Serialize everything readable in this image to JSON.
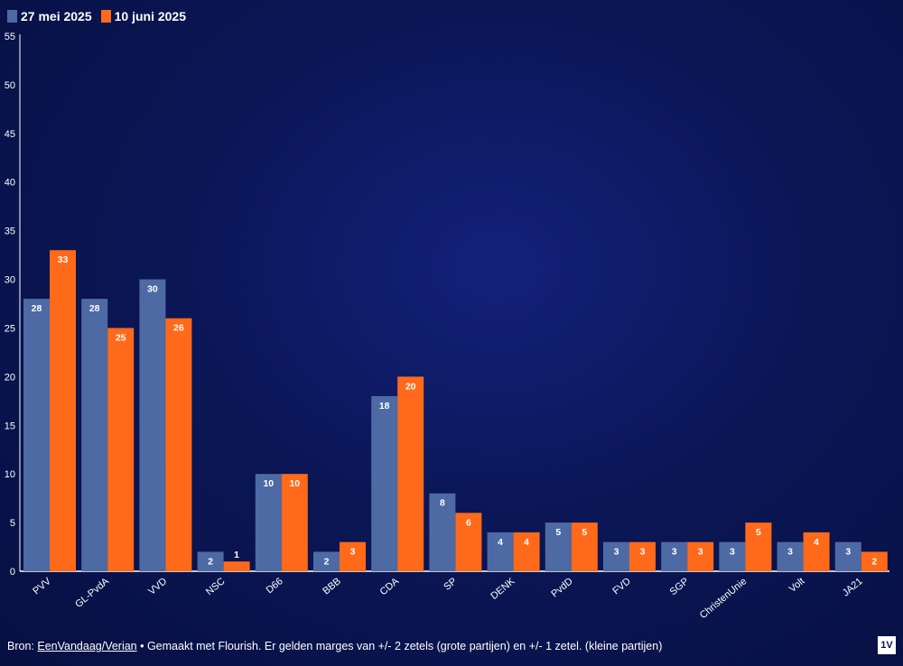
{
  "legend": {
    "items": [
      {
        "label": "27 mei 2025",
        "color": "#4e6aa4"
      },
      {
        "label": "10 juni 2025",
        "color": "#ff6a1a"
      }
    ]
  },
  "chart_data": {
    "type": "bar",
    "categories": [
      "PVV",
      "GL-PvdA",
      "VVD",
      "NSC",
      "D66",
      "BBB",
      "CDA",
      "SP",
      "DENK",
      "PvdD",
      "FVD",
      "SGP",
      "ChristenUnie",
      "Volt",
      "JA21"
    ],
    "series": [
      {
        "name": "27 mei 2025",
        "color": "#4e6aa4",
        "values": [
          28,
          28,
          30,
          2,
          10,
          2,
          18,
          8,
          4,
          5,
          3,
          3,
          3,
          3,
          3
        ]
      },
      {
        "name": "10 juni 2025",
        "color": "#ff6a1a",
        "values": [
          33,
          25,
          26,
          1,
          10,
          3,
          20,
          6,
          4,
          5,
          3,
          3,
          5,
          4,
          2
        ]
      }
    ],
    "ylim": [
      0,
      55
    ],
    "yticks": [
      0,
      5,
      10,
      15,
      20,
      25,
      30,
      35,
      40,
      45,
      50,
      55
    ],
    "legend_position": "top-left",
    "grid": false
  },
  "footer": {
    "prefix": "Bron: ",
    "source_link": "EenVandaag/Verian",
    "text": " • Gemaakt met Flourish. Er gelden marges van +/- 2 zetels (grote partijen) en +/- 1 zetel. (kleine partijen)"
  },
  "logo": {
    "text": "1V"
  }
}
